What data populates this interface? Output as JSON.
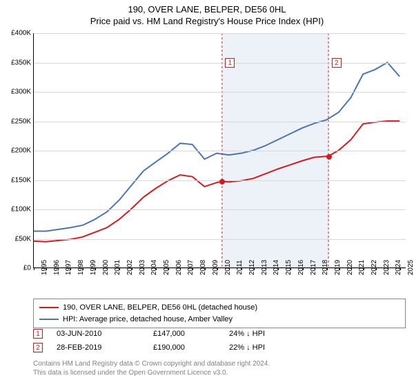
{
  "title": {
    "main": "190, OVER LANE, BELPER, DE56 0HL",
    "sub": "Price paid vs. HM Land Registry's House Price Index (HPI)"
  },
  "chart": {
    "type": "line",
    "background_color": "#ffffff",
    "grid_color": "#d7d7d7",
    "shaded_region_color": "#e6edf5",
    "x": {
      "min": 1995,
      "max": 2025.5,
      "ticks": [
        1995,
        1996,
        1997,
        1998,
        1999,
        2000,
        2001,
        2002,
        2003,
        2004,
        2005,
        2006,
        2007,
        2008,
        2009,
        2010,
        2011,
        2012,
        2013,
        2014,
        2015,
        2016,
        2017,
        2018,
        2019,
        2020,
        2021,
        2022,
        2023,
        2024,
        2025
      ],
      "label_fontsize": 10,
      "label_color": "#000000"
    },
    "y": {
      "min": 0,
      "max": 400000,
      "ticks": [
        0,
        50000,
        100000,
        150000,
        200000,
        250000,
        300000,
        350000,
        400000
      ],
      "tick_labels": [
        "£0",
        "£50K",
        "£100K",
        "£150K",
        "£200K",
        "£250K",
        "£300K",
        "£350K",
        "£400K"
      ],
      "label_fontsize": 10,
      "label_color": "#000000"
    },
    "shaded_region": {
      "x_start": 2010.44,
      "x_end": 2019.16
    },
    "series": [
      {
        "name": "property",
        "label": "190, OVER LANE, BELPER, DE56 0HL (detached house)",
        "color": "#d8181d",
        "line_width": 2,
        "points": [
          [
            1995,
            45000
          ],
          [
            1996,
            44000
          ],
          [
            1997,
            46000
          ],
          [
            1998,
            48000
          ],
          [
            1999,
            52000
          ],
          [
            2000,
            60000
          ],
          [
            2001,
            68000
          ],
          [
            2002,
            82000
          ],
          [
            2003,
            100000
          ],
          [
            2004,
            120000
          ],
          [
            2005,
            135000
          ],
          [
            2006,
            148000
          ],
          [
            2007,
            158000
          ],
          [
            2008,
            155000
          ],
          [
            2009,
            138000
          ],
          [
            2010,
            145000
          ],
          [
            2010.44,
            147000
          ],
          [
            2011,
            146000
          ],
          [
            2012,
            148000
          ],
          [
            2013,
            152000
          ],
          [
            2014,
            160000
          ],
          [
            2015,
            168000
          ],
          [
            2016,
            175000
          ],
          [
            2017,
            182000
          ],
          [
            2018,
            188000
          ],
          [
            2019.16,
            190000
          ],
          [
            2020,
            200000
          ],
          [
            2021,
            218000
          ],
          [
            2022,
            245000
          ],
          [
            2023,
            248000
          ],
          [
            2024,
            250000
          ],
          [
            2025,
            250000
          ]
        ]
      },
      {
        "name": "hpi",
        "label": "HPI: Average price, detached house, Amber Valley",
        "color": "#4a74b8",
        "line_width": 2,
        "points": [
          [
            1995,
            62000
          ],
          [
            1996,
            62000
          ],
          [
            1997,
            65000
          ],
          [
            1998,
            68000
          ],
          [
            1999,
            72000
          ],
          [
            2000,
            82000
          ],
          [
            2001,
            95000
          ],
          [
            2002,
            115000
          ],
          [
            2003,
            140000
          ],
          [
            2004,
            165000
          ],
          [
            2005,
            180000
          ],
          [
            2006,
            195000
          ],
          [
            2007,
            212000
          ],
          [
            2008,
            210000
          ],
          [
            2009,
            185000
          ],
          [
            2010,
            195000
          ],
          [
            2011,
            192000
          ],
          [
            2012,
            195000
          ],
          [
            2013,
            200000
          ],
          [
            2014,
            208000
          ],
          [
            2015,
            218000
          ],
          [
            2016,
            228000
          ],
          [
            2017,
            238000
          ],
          [
            2018,
            246000
          ],
          [
            2019,
            252000
          ],
          [
            2020,
            265000
          ],
          [
            2021,
            290000
          ],
          [
            2022,
            330000
          ],
          [
            2023,
            338000
          ],
          [
            2024,
            350000
          ],
          [
            2025,
            326000
          ]
        ]
      }
    ],
    "markers": [
      {
        "n": "1",
        "x": 2010.44,
        "y": 147000,
        "box_y": 350000,
        "color": "#d8181d"
      },
      {
        "n": "2",
        "x": 2019.16,
        "y": 190000,
        "box_y": 350000,
        "color": "#d8181d"
      }
    ]
  },
  "legend": {
    "border_color": "#888888",
    "items": [
      {
        "color": "#d8181d",
        "label": "190, OVER LANE, BELPER, DE56 0HL (detached house)"
      },
      {
        "color": "#4a74b8",
        "label": "HPI: Average price, detached house, Amber Valley"
      }
    ]
  },
  "events": [
    {
      "n": "1",
      "color": "#d8181d",
      "date": "03-JUN-2010",
      "price": "£147,000",
      "delta": "24% ↓ HPI"
    },
    {
      "n": "2",
      "color": "#d8181d",
      "date": "28-FEB-2019",
      "price": "£190,000",
      "delta": "22% ↓ HPI"
    }
  ],
  "footer": {
    "line1": "Contains HM Land Registry data © Crown copyright and database right 2024.",
    "line2": "This data is licensed under the Open Government Licence v3.0."
  }
}
